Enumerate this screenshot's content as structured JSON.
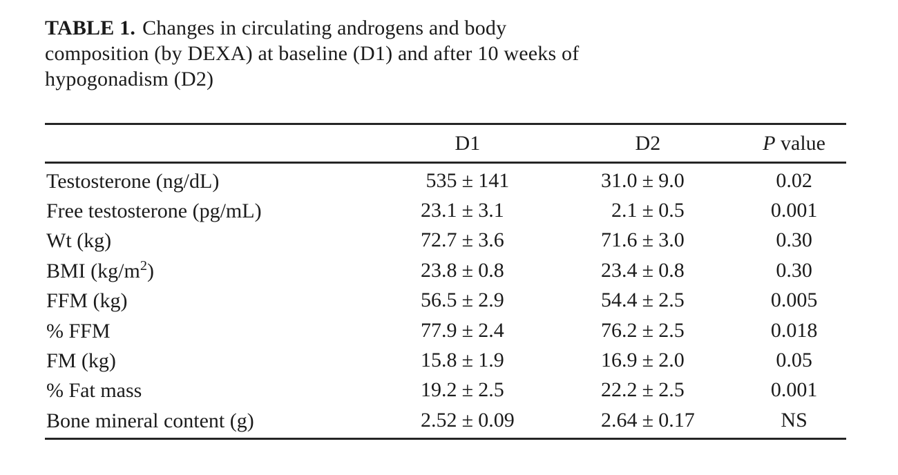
{
  "page": {
    "background_color": "#ffffff",
    "text_color": "#1b1b1b",
    "rule_color": "#252525"
  },
  "title": {
    "label": "TABLE 1.",
    "lines": [
      "Changes in circulating androgens and body",
      "composition (by DEXA) at baseline (D1) and after 10 weeks of",
      "hypogonadism (D2)"
    ]
  },
  "table": {
    "plus_minus": "±",
    "header": {
      "col_label": "",
      "col_d1": "D1",
      "col_d2": "D2",
      "col_p_symbol": "P",
      "col_p_rest": "value"
    },
    "rows": [
      {
        "label": "Testosterone (ng/dL)",
        "d1_mean": "535",
        "d1_sd": "141",
        "d2_mean": "31.0",
        "d2_sd": "9.0",
        "p": "0.02"
      },
      {
        "label": "Free testosterone (pg/mL)",
        "d1_mean": "23.1",
        "d1_sd": "3.1",
        "d2_mean": "2.1",
        "d2_sd": "0.5",
        "p": "0.001"
      },
      {
        "label": "Wt (kg)",
        "d1_mean": "72.7",
        "d1_sd": "3.6",
        "d2_mean": "71.6",
        "d2_sd": "3.0",
        "p": "0.30"
      },
      {
        "label": "BMI (kg/m",
        "label_sup": "2",
        "label_end": ")",
        "d1_mean": "23.8",
        "d1_sd": "0.8",
        "d2_mean": "23.4",
        "d2_sd": "0.8",
        "p": "0.30"
      },
      {
        "label": "FFM (kg)",
        "d1_mean": "56.5",
        "d1_sd": "2.9",
        "d2_mean": "54.4",
        "d2_sd": "2.5",
        "p": "0.005"
      },
      {
        "label": "% FFM",
        "d1_mean": "77.9",
        "d1_sd": "2.4",
        "d2_mean": "76.2",
        "d2_sd": "2.5",
        "p": "0.018"
      },
      {
        "label": "FM (kg)",
        "d1_mean": "15.8",
        "d1_sd": "1.9",
        "d2_mean": "16.9",
        "d2_sd": "2.0",
        "p": "0.05"
      },
      {
        "label": "% Fat mass",
        "d1_mean": "19.2",
        "d1_sd": "2.5",
        "d2_mean": "22.2",
        "d2_sd": "2.5",
        "p": "0.001"
      },
      {
        "label": "Bone mineral content (g)",
        "d1_mean": "2.52",
        "d1_sd": "0.09",
        "d2_mean": "2.64",
        "d2_sd": "0.17",
        "p": "NS"
      }
    ]
  }
}
